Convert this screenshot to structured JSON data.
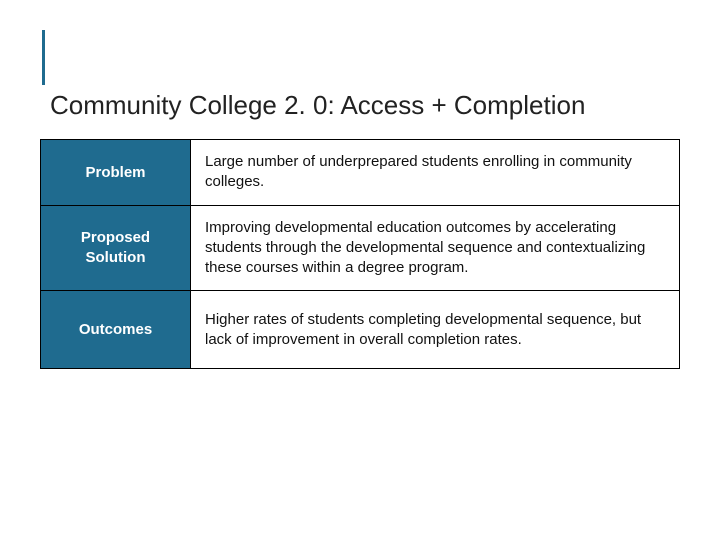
{
  "slide": {
    "title": "Community College 2. 0: Access + Completion",
    "accent_color": "#1f6b8f",
    "background_color": "#ffffff",
    "title_fontsize": 26,
    "table": {
      "label_bg": "#1f6b8f",
      "label_color": "#ffffff",
      "desc_bg": "#ffffff",
      "desc_color": "#111111",
      "border_color": "#000000",
      "label_fontsize": 15,
      "desc_fontsize": 15,
      "label_col_width": 150,
      "rows": [
        {
          "label": "Problem",
          "desc": "Large number of underprepared students enrolling in community colleges."
        },
        {
          "label": "Proposed Solution",
          "desc": "Improving developmental education outcomes by accelerating students through the developmental sequence and contextualizing these courses within a degree program."
        },
        {
          "label": "Outcomes",
          "desc": "Higher rates of students completing developmental sequence, but lack of improvement in overall completion rates."
        }
      ]
    }
  }
}
